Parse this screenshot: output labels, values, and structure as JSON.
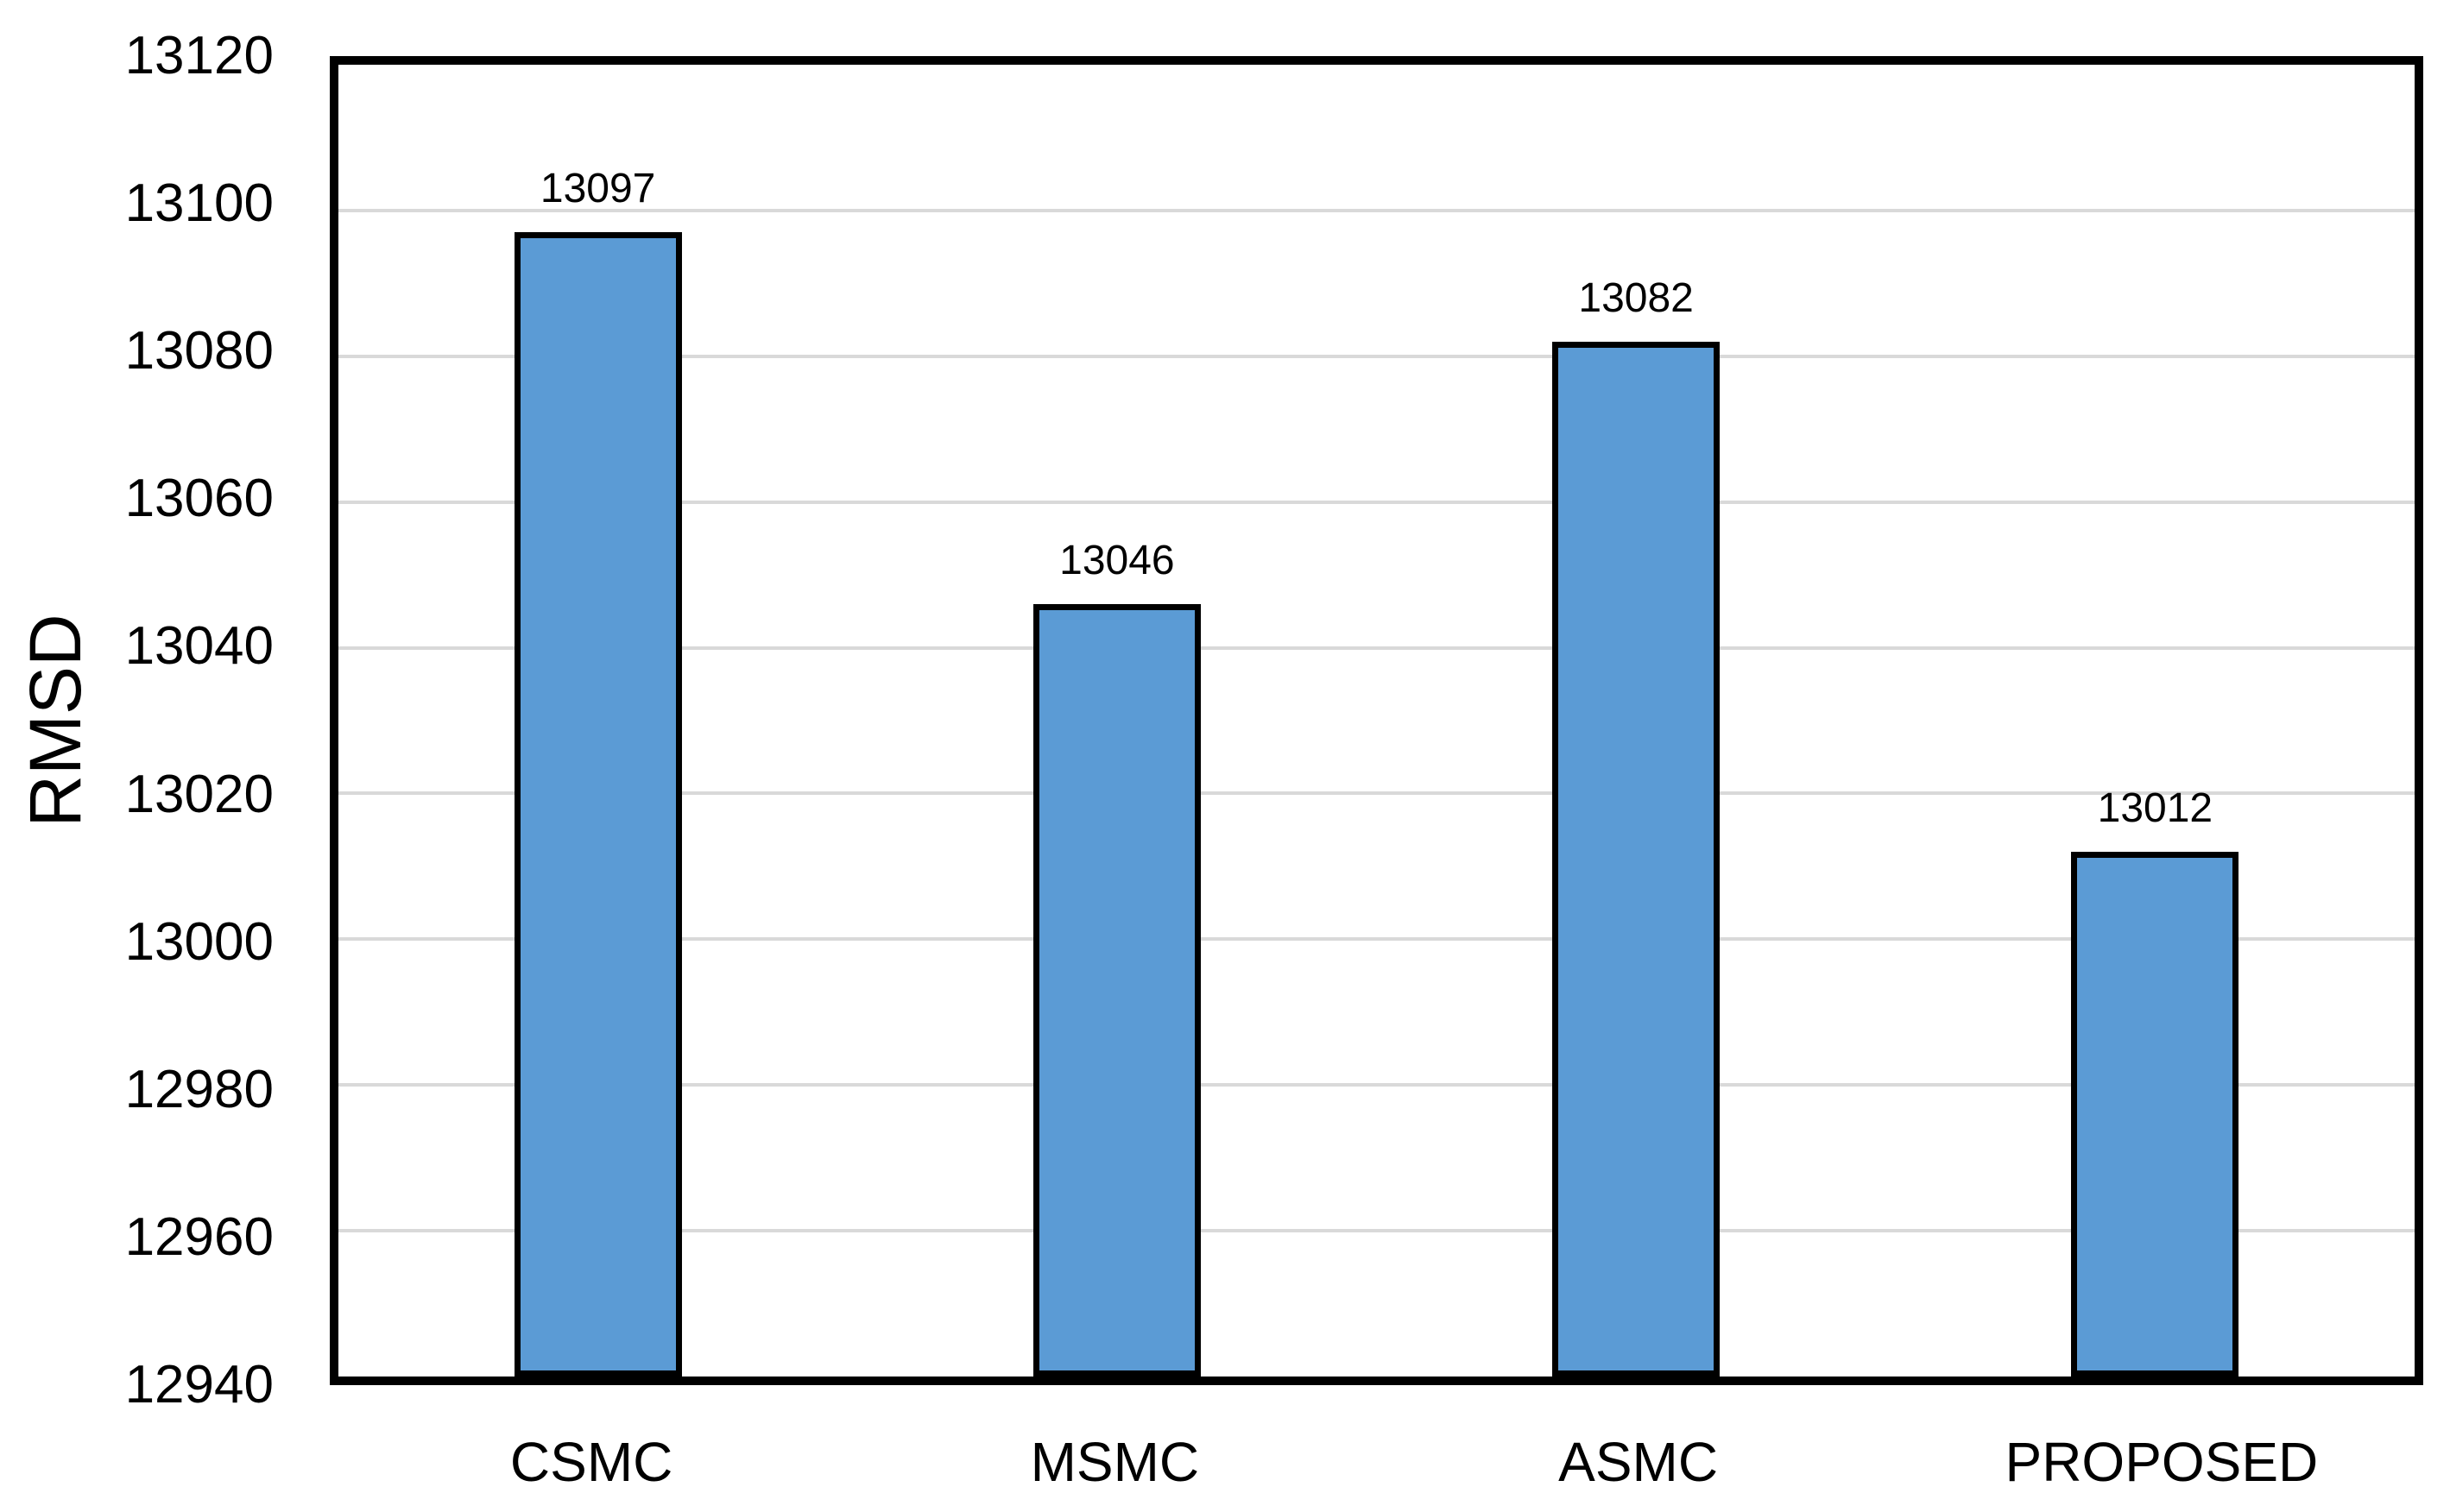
{
  "chart_data": {
    "type": "bar",
    "title": "",
    "categories": [
      "CSMC",
      "MSMC",
      "ASMC",
      "PROPOSED"
    ],
    "values": [
      13097,
      13046,
      13082,
      13012
    ],
    "data_labels": [
      "13097",
      "13046",
      "13082",
      "13012"
    ],
    "xlabel": "",
    "ylabel": "RMSD",
    "ylim": [
      12940,
      13120
    ],
    "ytick_step": 20,
    "yticks": [
      12940,
      12960,
      12980,
      13000,
      13020,
      13040,
      13060,
      13080,
      13100,
      13120
    ],
    "grid": "horizontal-major",
    "legend": "none",
    "colors": {
      "bar_fill": "#5B9BD5",
      "bar_border": "#000000",
      "plot_border": "#000000",
      "gridline": "#D9D9D9",
      "text": "#000000",
      "background": "#FFFFFF"
    }
  }
}
